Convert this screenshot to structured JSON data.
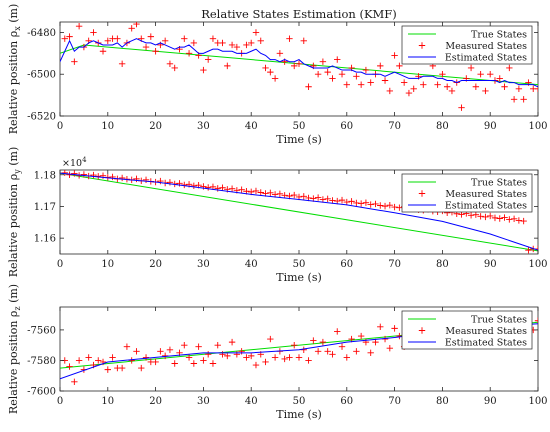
{
  "chart_data": [
    {
      "type": "line",
      "title": "Relative States Estimation (KMF)",
      "xlabel": "Time (s)",
      "ylabel": "Relative position ρ_x (m)",
      "xlim": [
        0,
        100
      ],
      "ylim": [
        -6520,
        -6475
      ],
      "xticks": [
        0,
        10,
        20,
        30,
        40,
        50,
        60,
        70,
        80,
        90,
        100
      ],
      "yticks": [
        -6520,
        -6500,
        -6480
      ],
      "legend": {
        "placement": "top-right",
        "entries": [
          "True States",
          "Measured States",
          "Estimated States"
        ]
      },
      "colors": {
        "true": "#00dd00",
        "measured": "#ff0000",
        "estimated": "#0000ff"
      },
      "series": [
        {
          "name": "True States",
          "x": [
            0,
            5,
            100
          ],
          "values": [
            -6490,
            -6486,
            -6505
          ]
        },
        {
          "name": "Measured States",
          "x": [
            1,
            2,
            3,
            4,
            5,
            6,
            7,
            8,
            9,
            10,
            11,
            12,
            13,
            14,
            15,
            16,
            17,
            18,
            19,
            20,
            21,
            22,
            23,
            24,
            25,
            26,
            27,
            28,
            29,
            30,
            31,
            32,
            33,
            34,
            35,
            36,
            37,
            38,
            39,
            40,
            41,
            42,
            43,
            44,
            45,
            46,
            47,
            48,
            49,
            50,
            51,
            52,
            53,
            54,
            55,
            56,
            57,
            58,
            59,
            60,
            61,
            62,
            63,
            64,
            65,
            66,
            67,
            68,
            69,
            70,
            71,
            72,
            73,
            74,
            75,
            76,
            77,
            78,
            79,
            80,
            81,
            82,
            83,
            84,
            85,
            86,
            87,
            88,
            89,
            90,
            91,
            92,
            93,
            94,
            95,
            96,
            97,
            98,
            99,
            100
          ],
          "values": [
            -6483,
            -6482,
            -6494,
            -6477,
            -6487,
            -6484,
            -6480,
            -6485,
            -6489,
            -6484,
            -6483,
            -6483,
            -6495,
            -6485,
            -6478,
            -6476,
            -6483,
            -6487,
            -6482,
            -6489,
            -6486,
            -6484,
            -6495,
            -6497,
            -6488,
            -6483,
            -6490,
            -6485,
            -6491,
            -6498,
            -6493,
            -6483,
            -6485,
            -6485,
            -6496,
            -6486,
            -6487,
            -6490,
            -6486,
            -6485,
            -6480,
            -6484,
            -6497,
            -6499,
            -6502,
            -6490,
            -6494,
            -6483,
            -6496,
            -6495,
            -6484,
            -6506,
            -6496,
            -6500,
            -6494,
            -6499,
            -6502,
            -6493,
            -6500,
            -6505,
            -6497,
            -6501,
            -6505,
            -6498,
            -6504,
            -6500,
            -6496,
            -6503,
            -6508,
            -6491,
            -6496,
            -6504,
            -6509,
            -6507,
            -6501,
            -6505,
            -6493,
            -6496,
            -6505,
            -6500,
            -6506,
            -6508,
            -6504,
            -6516,
            -6502,
            -6497,
            -6506,
            -6500,
            -6508,
            -6500,
            -6503,
            -6502,
            -6506,
            -6497,
            -6512,
            -6507,
            -6512,
            -6504,
            -6507,
            -6507
          ]
        },
        {
          "name": "Estimated States",
          "x": [
            0,
            1,
            2,
            3,
            4,
            5,
            6,
            7,
            8,
            9,
            10,
            11,
            12,
            13,
            14,
            15,
            16,
            17,
            18,
            19,
            20,
            21,
            22,
            23,
            24,
            25,
            26,
            27,
            28,
            29,
            30,
            31,
            32,
            33,
            34,
            35,
            36,
            37,
            38,
            39,
            40,
            41,
            42,
            43,
            44,
            45,
            46,
            47,
            48,
            49,
            50,
            51,
            52,
            53,
            54,
            55,
            56,
            57,
            58,
            59,
            60,
            61,
            62,
            63,
            64,
            65,
            66,
            67,
            68,
            69,
            70,
            71,
            72,
            73,
            74,
            75,
            76,
            77,
            78,
            79,
            80,
            81,
            82,
            83,
            84,
            85,
            86,
            87,
            88,
            89,
            90,
            91,
            92,
            93,
            94,
            95,
            96,
            97,
            98,
            99,
            100
          ],
          "values": [
            -6494,
            -6489,
            -6484,
            -6489,
            -6487,
            -6487,
            -6485,
            -6484,
            -6485,
            -6486,
            -6486,
            -6486,
            -6485,
            -6487,
            -6485,
            -6484,
            -6483,
            -6484,
            -6485,
            -6485,
            -6486,
            -6485,
            -6486,
            -6487,
            -6488,
            -6487,
            -6487,
            -6486,
            -6488,
            -6490,
            -6490,
            -6489,
            -6488,
            -6488,
            -6489,
            -6489,
            -6489,
            -6490,
            -6490,
            -6490,
            -6489,
            -6488,
            -6490,
            -6491,
            -6493,
            -6493,
            -6494,
            -6493,
            -6494,
            -6494,
            -6493,
            -6495,
            -6496,
            -6497,
            -6497,
            -6497,
            -6497,
            -6496,
            -6497,
            -6498,
            -6498,
            -6498,
            -6499,
            -6499,
            -6500,
            -6500,
            -6500,
            -6500,
            -6501,
            -6500,
            -6499,
            -6500,
            -6501,
            -6502,
            -6502,
            -6502,
            -6501,
            -6501,
            -6501,
            -6502,
            -6502,
            -6503,
            -6503,
            -6504,
            -6503,
            -6503,
            -6503,
            -6503,
            -6503,
            -6503,
            -6503,
            -6503,
            -6504,
            -6503,
            -6504,
            -6504,
            -6505,
            -6505,
            -6505,
            -6505,
            -6506
          ]
        }
      ]
    },
    {
      "type": "line",
      "xlabel": "Time (s)",
      "ylabel": "Relative position ρ_y (m)",
      "y_exponent": "×10^4",
      "xlim": [
        0,
        100
      ],
      "ylim": [
        1.155,
        1.1815
      ],
      "xticks": [
        0,
        10,
        20,
        30,
        40,
        50,
        60,
        70,
        80,
        90,
        100
      ],
      "yticks": [
        1.16,
        1.17,
        1.18
      ],
      "legend": {
        "placement": "top-right",
        "entries": [
          "True States",
          "Measured States",
          "Estimated States"
        ]
      },
      "colors": {
        "true": "#00dd00",
        "measured": "#ff0000",
        "estimated": "#0000ff"
      },
      "series": [
        {
          "name": "True States",
          "x": [
            0,
            100
          ],
          "values": [
            1.1805,
            1.156
          ]
        },
        {
          "name": "Measured States",
          "x": [
            1,
            2,
            3,
            4,
            5,
            6,
            7,
            8,
            9,
            10,
            11,
            12,
            13,
            14,
            15,
            16,
            17,
            18,
            19,
            20,
            21,
            22,
            23,
            24,
            25,
            26,
            27,
            28,
            29,
            30,
            31,
            32,
            33,
            34,
            35,
            36,
            37,
            38,
            39,
            40,
            41,
            42,
            43,
            44,
            45,
            46,
            47,
            48,
            49,
            50,
            51,
            52,
            53,
            54,
            55,
            56,
            57,
            58,
            59,
            60,
            61,
            62,
            63,
            64,
            65,
            66,
            67,
            68,
            69,
            70,
            71,
            72,
            73,
            74,
            75,
            76,
            77,
            78,
            79,
            80,
            81,
            82,
            83,
            84,
            85,
            86,
            87,
            88,
            89,
            90,
            91,
            92,
            93,
            94,
            95,
            96,
            97,
            98,
            99,
            100
          ],
          "values": [
            1.1806,
            1.18,
            1.1804,
            1.1798,
            1.1801,
            1.1796,
            1.1799,
            1.1795,
            1.1797,
            1.1792,
            1.1793,
            1.1787,
            1.179,
            1.1786,
            1.1784,
            1.1787,
            1.1781,
            1.1784,
            1.1779,
            1.1777,
            1.178,
            1.1774,
            1.1776,
            1.1771,
            1.1773,
            1.1768,
            1.177,
            1.1765,
            1.1767,
            1.1763,
            1.176,
            1.1762,
            1.1757,
            1.1759,
            1.1754,
            1.1756,
            1.1751,
            1.1753,
            1.1748,
            1.1746,
            1.1749,
            1.1744,
            1.1741,
            1.1743,
            1.1738,
            1.174,
            1.1735,
            1.1733,
            1.1736,
            1.173,
            1.1732,
            1.1727,
            1.1725,
            1.1728,
            1.1722,
            1.1724,
            1.1719,
            1.1717,
            1.172,
            1.1714,
            1.1716,
            1.1711,
            1.1709,
            1.1712,
            1.1706,
            1.1708,
            1.1703,
            1.1701,
            1.1704,
            1.1698,
            1.1696,
            1.1699,
            1.1693,
            1.1695,
            1.169,
            1.1688,
            1.1691,
            1.1685,
            1.1683,
            1.1686,
            1.168,
            1.1682,
            1.1677,
            1.1675,
            1.1678,
            1.1672,
            1.1674,
            1.1669,
            1.1667,
            1.167,
            1.1664,
            1.1662,
            1.1665,
            1.1659,
            1.1661,
            1.1656,
            1.1654,
            1.1562,
            1.1566,
            1.1566
          ]
        },
        {
          "name": "Estimated States",
          "x": [
            0,
            10,
            20,
            30,
            40,
            50,
            60,
            70,
            80,
            90,
            100
          ],
          "values": [
            1.1805,
            1.179,
            1.1777,
            1.1758,
            1.1738,
            1.1722,
            1.1705,
            1.168,
            1.1653,
            1.1613,
            1.1562
          ]
        }
      ]
    },
    {
      "type": "line",
      "xlabel": "Time (s)",
      "ylabel": "Relative position ρ_z (m)",
      "xlim": [
        0,
        100
      ],
      "ylim": [
        -7600,
        -7545
      ],
      "xticks": [
        0,
        10,
        20,
        30,
        40,
        50,
        60,
        70,
        80,
        90,
        100
      ],
      "yticks": [
        -7600,
        -7580,
        -7560
      ],
      "legend": {
        "placement": "top-right",
        "entries": [
          "True States",
          "Measured States",
          "Estimated States"
        ]
      },
      "colors": {
        "true": "#00dd00",
        "measured": "#ff0000",
        "estimated": "#0000ff"
      },
      "series": [
        {
          "name": "True States",
          "x": [
            0,
            100
          ],
          "values": [
            -7585,
            -7555
          ]
        },
        {
          "name": "Measured States",
          "x": [
            1,
            2,
            3,
            4,
            5,
            6,
            7,
            8,
            9,
            10,
            11,
            12,
            13,
            14,
            15,
            16,
            17,
            18,
            19,
            20,
            21,
            22,
            23,
            24,
            25,
            26,
            27,
            28,
            29,
            30,
            31,
            32,
            33,
            34,
            35,
            36,
            37,
            38,
            39,
            40,
            41,
            42,
            43,
            44,
            45,
            46,
            47,
            48,
            49,
            50,
            51,
            52,
            53,
            54,
            55,
            56,
            57,
            58,
            59,
            60,
            61,
            62,
            63,
            64,
            65,
            66,
            67,
            68,
            69,
            70,
            71,
            72,
            73,
            74,
            75,
            76,
            77,
            78,
            79,
            80,
            81,
            82,
            83,
            84,
            85,
            86,
            87,
            88,
            89,
            90,
            91,
            92,
            93,
            94,
            95,
            96,
            97,
            98,
            99,
            100
          ],
          "values": [
            -7580,
            -7584,
            -7594,
            -7580,
            -7586,
            -7578,
            -7583,
            -7580,
            -7581,
            -7586,
            -7578,
            -7585,
            -7585,
            -7571,
            -7580,
            -7574,
            -7585,
            -7578,
            -7581,
            -7581,
            -7574,
            -7577,
            -7573,
            -7582,
            -7575,
            -7570,
            -7578,
            -7582,
            -7571,
            -7580,
            -7576,
            -7582,
            -7570,
            -7576,
            -7577,
            -7568,
            -7576,
            -7574,
            -7578,
            -7577,
            -7583,
            -7576,
            -7581,
            -7566,
            -7578,
            -7574,
            -7579,
            -7578,
            -7570,
            -7578,
            -7573,
            -7580,
            -7567,
            -7574,
            -7568,
            -7574,
            -7576,
            -7561,
            -7571,
            -7578,
            -7566,
            -7574,
            -7564,
            -7568,
            -7575,
            -7568,
            -7558,
            -7566,
            -7572,
            -7559,
            -7564,
            -7571,
            -7564,
            -7555,
            -7562,
            -7567,
            -7559,
            -7558,
            -7563,
            -7556,
            -7560,
            -7567,
            -7561,
            -7554,
            -7562,
            -7557,
            -7565,
            -7555,
            -7560,
            -7556,
            -7562,
            -7560,
            -7556,
            -7552,
            -7561,
            -7558,
            -7556,
            -7563,
            -7560,
            -7554
          ]
        },
        {
          "name": "Estimated States",
          "x": [
            0,
            10,
            20,
            30,
            40,
            50,
            60,
            70,
            80,
            90,
            100
          ],
          "values": [
            -7592,
            -7581,
            -7578,
            -7575,
            -7575,
            -7573,
            -7568,
            -7565,
            -7561,
            -7558,
            -7556
          ]
        }
      ]
    }
  ]
}
